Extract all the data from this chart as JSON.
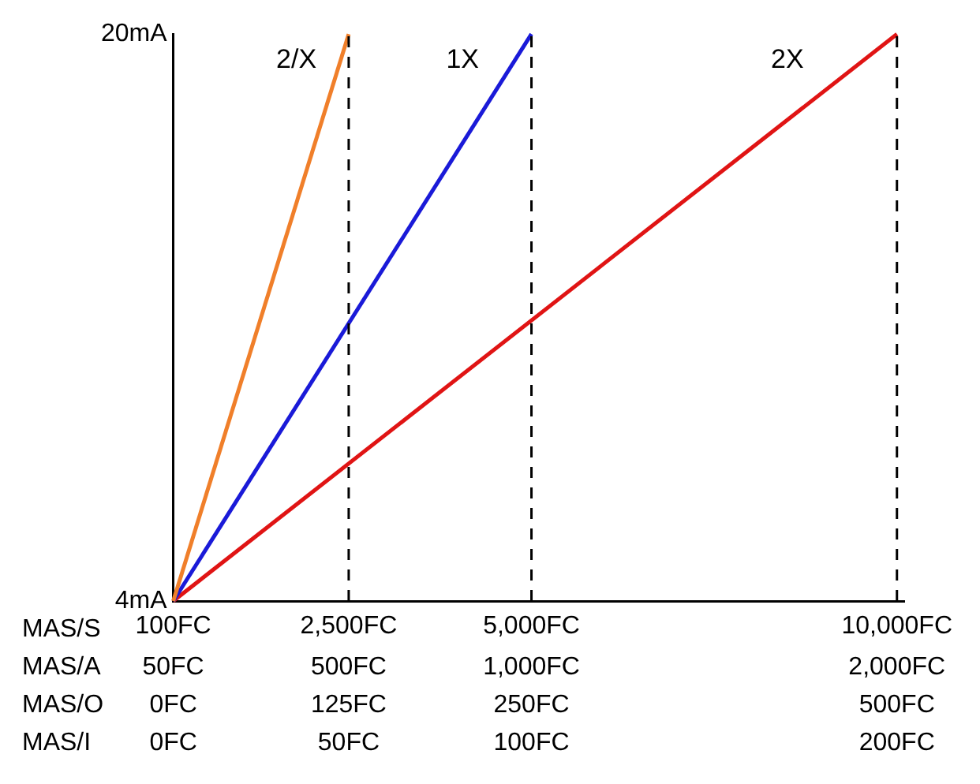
{
  "chart_data": {
    "type": "line",
    "xlim": [
      100,
      10100
    ],
    "xticks": [
      {
        "value": 100,
        "label": "100FC"
      },
      {
        "value": 2500,
        "label": "2,500FC"
      },
      {
        "value": 5000,
        "label": "5,000FC"
      },
      {
        "value": 10000,
        "label": "10,000FC"
      }
    ],
    "ylim": [
      4,
      20
    ],
    "yticks": [
      {
        "value": 4,
        "label": "4mA"
      },
      {
        "value": 20,
        "label": "20mA"
      }
    ],
    "series": [
      {
        "name": "2/X",
        "color": "#f07f2a",
        "x": [
          100,
          2500
        ],
        "values": [
          4,
          20
        ]
      },
      {
        "name": "1X",
        "color": "#1a1ad8",
        "x": [
          100,
          5000
        ],
        "values": [
          4,
          20
        ]
      },
      {
        "name": "2X",
        "color": "#e01414",
        "x": [
          100,
          10000
        ],
        "values": [
          4,
          20
        ]
      }
    ],
    "ref_lines": [
      {
        "axis": "x",
        "value": 2500,
        "line_style": "dashed",
        "color": "#000000"
      },
      {
        "axis": "x",
        "value": 5000,
        "line_style": "dashed",
        "color": "#000000"
      },
      {
        "axis": "x",
        "value": 10000,
        "line_style": "dashed",
        "color": "#000000"
      }
    ],
    "annotations": [
      "MAS/S",
      "MAS/A",
      "50FC",
      "500FC",
      "1,000FC",
      "2,000FC",
      "MAS/O",
      "0FC",
      "125FC",
      "250FC",
      "500FC",
      "MAS/I",
      "0FC",
      "50FC",
      "100FC",
      "200FC"
    ],
    "grid": false,
    "legend": false,
    "marker": "none",
    "line_style": "solid"
  }
}
